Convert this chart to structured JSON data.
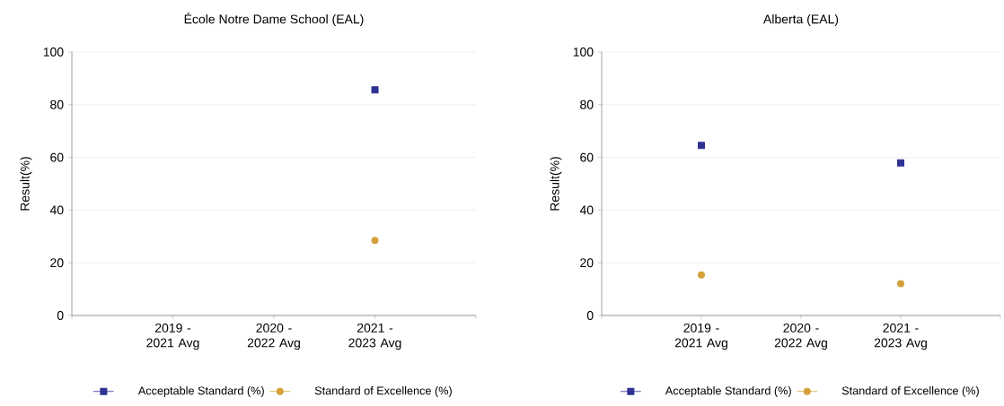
{
  "chart_data": [
    {
      "type": "scatter",
      "title": "École Notre Dame School (EAL)",
      "ylabel": "Result(%)",
      "categories": [
        "2019 - 2021 Avg",
        "2020 - 2022 Avg",
        "2021 - 2023 Avg"
      ],
      "series": [
        {
          "name": "Acceptable Standard (%)",
          "color": "#2e3192",
          "marker": "square",
          "values": [
            null,
            null,
            85.6
          ]
        },
        {
          "name": "Standard of Excellence (%)",
          "color": "#d4a03a",
          "marker": "circle",
          "values": [
            null,
            null,
            28.5
          ]
        }
      ],
      "ylim": [
        0,
        100
      ],
      "yticks": [
        0,
        20,
        40,
        60,
        80,
        100
      ],
      "grid": "y",
      "legend": "bottom"
    },
    {
      "type": "scatter",
      "title": "Alberta (EAL)",
      "ylabel": "Result(%)",
      "categories": [
        "2019 - 2021 Avg",
        "2020 - 2022 Avg",
        "2021 - 2023 Avg"
      ],
      "series": [
        {
          "name": "Acceptable Standard (%)",
          "color": "#2e3192",
          "marker": "square",
          "values": [
            64.5,
            null,
            57.9
          ]
        },
        {
          "name": "Standard of Excellence (%)",
          "color": "#d4a03a",
          "marker": "circle",
          "values": [
            15.4,
            null,
            12.1
          ]
        }
      ],
      "ylim": [
        0,
        100
      ],
      "yticks": [
        0,
        20,
        40,
        60,
        80,
        100
      ],
      "grid": "y",
      "legend": "bottom"
    }
  ]
}
